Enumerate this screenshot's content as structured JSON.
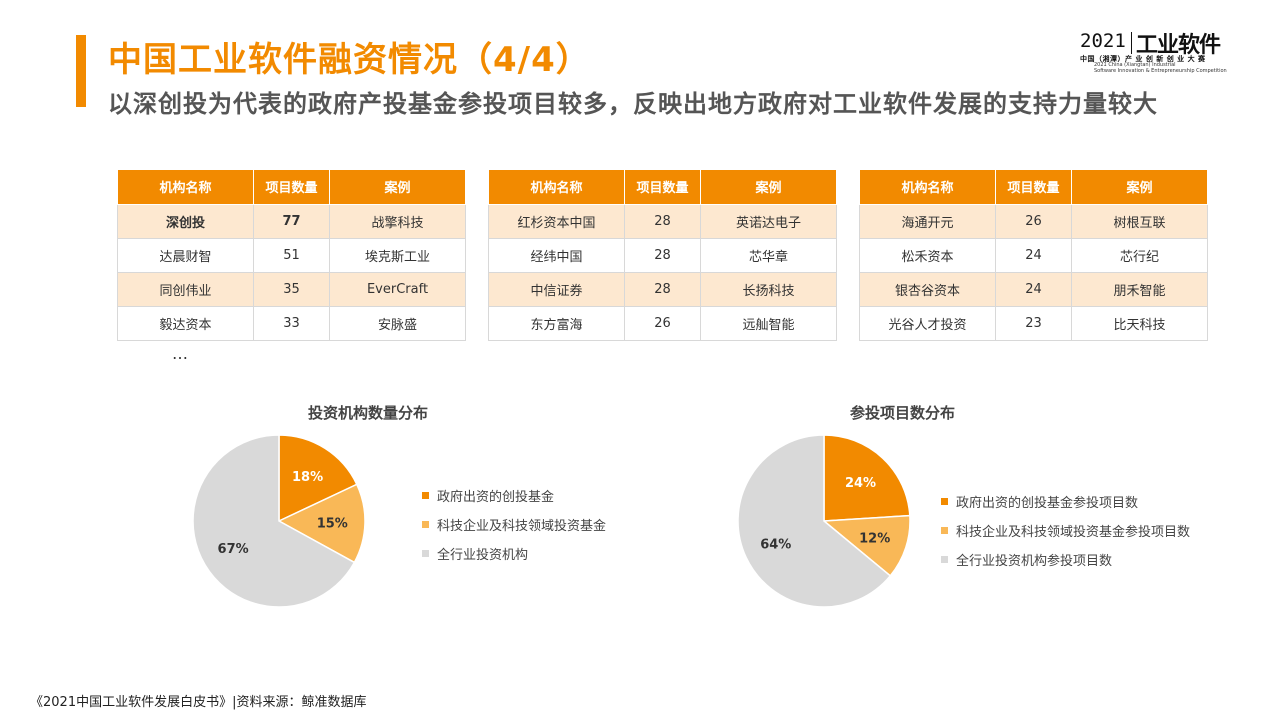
{
  "header": {
    "title": "中国工业软件融资情况（4/4）",
    "subtitle": "以深创投为代表的政府产投基金参投项目较多，反映出地方政府对工业软件发展的支持力量较大"
  },
  "logo": {
    "year": "2021",
    "brand": "工业软件",
    "line1": "中国（湘潭）产 业 创 新 创 业 大 赛",
    "line2": "2021 China (Xiangtan) Industrial",
    "line3": "Software Innovation & Entrepreneurship Competition"
  },
  "tables": [
    {
      "headers": [
        "机构名称",
        "项目数量",
        "案例"
      ],
      "rows": [
        {
          "name": "深创投",
          "count": "77",
          "case": "战擎科技",
          "bold": true
        },
        {
          "name": "达晨财智",
          "count": "51",
          "case": "埃克斯工业",
          "bold": false
        },
        {
          "name": "同创伟业",
          "count": "35",
          "case": "EverCraft",
          "bold": false
        },
        {
          "name": "毅达资本",
          "count": "33",
          "case": "安脉盛",
          "bold": false
        }
      ]
    },
    {
      "headers": [
        "机构名称",
        "项目数量",
        "案例"
      ],
      "rows": [
        {
          "name": "红杉资本中国",
          "count": "28",
          "case": "英诺达电子",
          "bold": false
        },
        {
          "name": "经纬中国",
          "count": "28",
          "case": "芯华章",
          "bold": false
        },
        {
          "name": "中信证券",
          "count": "28",
          "case": "长扬科技",
          "bold": false
        },
        {
          "name": "东方富海",
          "count": "26",
          "case": "远舢智能",
          "bold": false
        }
      ]
    },
    {
      "headers": [
        "机构名称",
        "项目数量",
        "案例"
      ],
      "rows": [
        {
          "name": "海通开元",
          "count": "26",
          "case": "树根互联",
          "bold": false
        },
        {
          "name": "松禾资本",
          "count": "24",
          "case": "芯行纪",
          "bold": false
        },
        {
          "name": "银杏谷资本",
          "count": "24",
          "case": "朋禾智能",
          "bold": false
        },
        {
          "name": "光谷人才投资",
          "count": "23",
          "case": "比天科技",
          "bold": false
        }
      ]
    }
  ],
  "ellipsis": "…",
  "colors": {
    "accent": "#f28a00",
    "gov": "#f28a00",
    "tech": "#f9b857",
    "all": "#d9d9d9"
  },
  "chart_data": [
    {
      "type": "pie",
      "title": "投资机构数量分布",
      "legend_position": "right",
      "slices": [
        {
          "name": "政府出资的创投基金",
          "value": 18,
          "label": "18%",
          "color": "#f28a00"
        },
        {
          "name": "科技企业及科技领域投资基金",
          "value": 15,
          "label": "15%",
          "color": "#f9b857"
        },
        {
          "name": "全行业投资机构",
          "value": 67,
          "label": "67%",
          "color": "#d9d9d9"
        }
      ]
    },
    {
      "type": "pie",
      "title": "参投项目数分布",
      "legend_position": "right",
      "slices": [
        {
          "name": "政府出资的创投基金参投项目数",
          "value": 24,
          "label": "24%",
          "color": "#f28a00"
        },
        {
          "name": "科技企业及科技领域投资基金参投项目数",
          "value": 12,
          "label": "12%",
          "color": "#f9b857"
        },
        {
          "name": "全行业投资机构参投项目数",
          "value": 64,
          "label": "64%",
          "color": "#d9d9d9"
        }
      ]
    }
  ],
  "footer": "《2021中国工业软件发展白皮书》|资料来源：鲸准数据库"
}
